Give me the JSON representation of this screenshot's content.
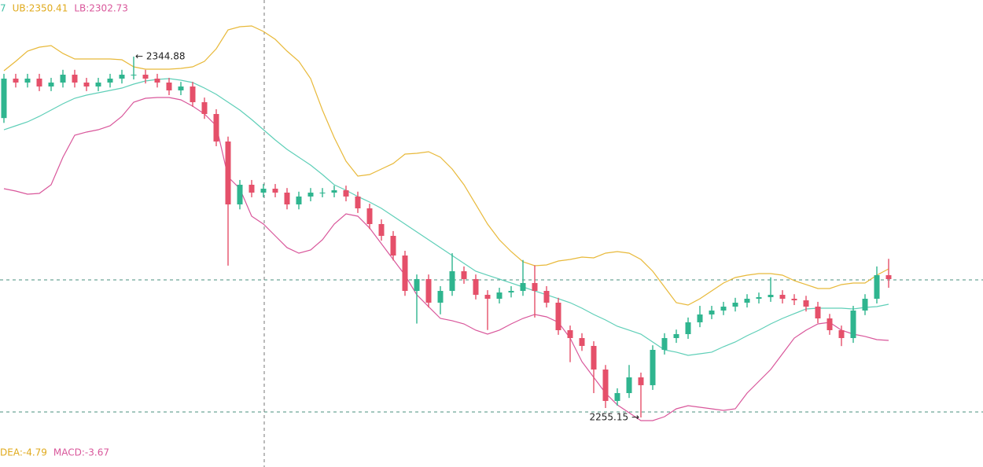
{
  "chart_data": {
    "type": "candlestick",
    "indicator_labels": [
      {
        "text": "7",
        "color": "#3fbfa5"
      },
      {
        "text": "UB:2350.41",
        "color": "#e0aa1c"
      },
      {
        "text": "LB:2302.73",
        "color": "#d9579b"
      }
    ],
    "macd_labels": [
      {
        "text": "DEA:-4.79",
        "color": "#e0aa1c"
      },
      {
        "text": "MACD:-3.67",
        "color": "#d9579b"
      }
    ],
    "ylim": [
      2242.83,
      2358.96
    ],
    "up_color": "#2fb58f",
    "down_color": "#e5506a",
    "opens": [
      2329.6,
      2339.41,
      2338.43,
      2339.41,
      2337.45,
      2338.43,
      2340.39,
      2338.43,
      2337.45,
      2338.43,
      2339.41,
      2340.39,
      2340.39,
      2339.41,
      2338.43,
      2336.48,
      2337.45,
      2333.55,
      2330.61,
      2323.77,
      2308.13,
      2313.02,
      2311.06,
      2312.04,
      2311.06,
      2308.13,
      2310.09,
      2311.06,
      2311.06,
      2311.65,
      2310.09,
      2307.15,
      2303.24,
      2300.31,
      2295.42,
      2286.62,
      2289.56,
      2283.69,
      2286.62,
      2291.51,
      2289.56,
      2285.65,
      2284.67,
      2286.23,
      2286.62,
      2288.58,
      2286.62,
      2283.69,
      2276.85,
      2274.89,
      2272.94,
      2267.07,
      2259.26,
      2261.21,
      2265.12,
      2263.17,
      2271.96,
      2274.89,
      2275.87,
      2278.81,
      2280.76,
      2281.74,
      2282.71,
      2283.69,
      2284.67,
      2285.06,
      2285.65,
      2284.67,
      2284.28,
      2282.71,
      2279.78,
      2276.85,
      2274.89,
      2281.74,
      2284.67,
      2290.53
    ],
    "highs": [
      2340.6,
      2340.6,
      2340.6,
      2340.6,
      2339.6,
      2341.6,
      2341.6,
      2339.6,
      2339.6,
      2340.6,
      2341.6,
      2344.88,
      2341.6,
      2340.6,
      2339.6,
      2338.6,
      2338.6,
      2334.7,
      2331.8,
      2325.0,
      2314.2,
      2314.2,
      2313.2,
      2313.2,
      2312.2,
      2311.3,
      2312.2,
      2312.2,
      2312.8,
      2312.8,
      2311.3,
      2308.3,
      2304.4,
      2301.5,
      2296.6,
      2290.7,
      2290.7,
      2287.8,
      2296.0,
      2292.7,
      2290.7,
      2286.8,
      2287.4,
      2287.8,
      2294.3,
      2293.0,
      2287.8,
      2284.9,
      2278.0,
      2276.1,
      2274.1,
      2268.2,
      2262.4,
      2268.2,
      2266.3,
      2273.1,
      2276.1,
      2277.0,
      2280.0,
      2282.9,
      2282.9,
      2283.9,
      2284.9,
      2285.8,
      2286.2,
      2290.0,
      2286.8,
      2285.8,
      2285.4,
      2283.9,
      2280.9,
      2278.0,
      2282.9,
      2285.8,
      2292.7,
      2294.6
    ],
    "lows": [
      2328.4,
      2337.2,
      2337.2,
      2336.3,
      2336.3,
      2337.2,
      2337.2,
      2336.3,
      2336.3,
      2337.2,
      2338.2,
      2339.2,
      2338.2,
      2337.2,
      2335.3,
      2335.3,
      2332.4,
      2329.4,
      2322.6,
      2292.9,
      2306.9,
      2309.9,
      2309.9,
      2309.9,
      2306.9,
      2306.9,
      2308.9,
      2309.9,
      2309.9,
      2308.9,
      2306.0,
      2302.0,
      2299.1,
      2294.2,
      2285.4,
      2278.5,
      2282.5,
      2280.8,
      2285.4,
      2288.4,
      2284.5,
      2276.9,
      2283.5,
      2285.0,
      2285.4,
      2280.0,
      2282.5,
      2275.7,
      2268.9,
      2271.7,
      2261.2,
      2257.5,
      2258.1,
      2260.0,
      2255.15,
      2262.0,
      2270.8,
      2273.7,
      2274.7,
      2277.6,
      2279.6,
      2280.6,
      2281.5,
      2282.5,
      2283.5,
      2283.9,
      2283.5,
      2283.1,
      2281.5,
      2278.6,
      2275.7,
      2272.9,
      2273.7,
      2280.6,
      2283.5,
      2287.4
    ],
    "closes": [
      2339.41,
      2338.43,
      2339.41,
      2337.45,
      2338.43,
      2340.39,
      2338.43,
      2337.45,
      2338.43,
      2339.41,
      2340.39,
      2340.39,
      2339.41,
      2338.43,
      2336.48,
      2337.45,
      2333.55,
      2330.61,
      2323.77,
      2308.13,
      2313.02,
      2311.06,
      2312.04,
      2311.06,
      2308.13,
      2310.09,
      2311.06,
      2311.06,
      2311.65,
      2310.09,
      2307.15,
      2303.24,
      2300.31,
      2295.42,
      2286.62,
      2289.56,
      2283.69,
      2286.62,
      2291.51,
      2289.56,
      2285.65,
      2284.67,
      2286.23,
      2286.62,
      2288.58,
      2286.62,
      2283.69,
      2276.85,
      2274.89,
      2272.94,
      2267.07,
      2259.26,
      2261.21,
      2265.12,
      2263.17,
      2271.96,
      2274.89,
      2275.87,
      2278.81,
      2280.76,
      2281.74,
      2282.71,
      2283.69,
      2284.67,
      2285.06,
      2285.65,
      2284.67,
      2284.28,
      2282.71,
      2279.78,
      2276.85,
      2274.89,
      2281.74,
      2284.67,
      2290.53,
      2289.56
    ],
    "series": [
      {
        "color": "#e8b93a",
        "values": [
          2341.36,
          2343.71,
          2346.25,
          2347.23,
          2347.62,
          2345.67,
          2344.3,
          2344.3,
          2344.3,
          2344.3,
          2344.1,
          2342.34,
          2341.76,
          2341.76,
          2341.76,
          2341.95,
          2342.34,
          2343.71,
          2346.84,
          2351.53,
          2352.31,
          2352.51,
          2351.14,
          2349.18,
          2346.25,
          2343.71,
          2339.41,
          2331.59,
          2324.75,
          2318.88,
          2315.17,
          2315.56,
          2316.93,
          2318.3,
          2320.64,
          2320.84,
          2321.23,
          2319.86,
          2316.93,
          2313.02,
          2308.13,
          2303.24,
          2299.33,
          2296.4,
          2293.86,
          2292.88,
          2293.08,
          2294.05,
          2294.44,
          2295.03,
          2294.84,
          2296.01,
          2296.4,
          2296.01,
          2294.44,
          2291.51,
          2287.6,
          2283.69,
          2283.11,
          2284.67,
          2286.62,
          2288.58,
          2289.95,
          2290.53,
          2290.93,
          2290.93,
          2290.53,
          2289.17,
          2288.19,
          2287.21,
          2287.21,
          2288.19,
          2288.58,
          2288.58,
          2290.53,
          2292.1
        ]
      },
      {
        "color": "#5fcfb8",
        "values": [
          2326.7,
          2327.68,
          2328.66,
          2330.03,
          2331.59,
          2333.15,
          2334.52,
          2335.3,
          2335.89,
          2336.48,
          2337.06,
          2338.04,
          2338.82,
          2339.21,
          2339.41,
          2339.02,
          2338.43,
          2337.06,
          2335.5,
          2333.54,
          2331.59,
          2329.24,
          2326.7,
          2324.16,
          2321.81,
          2319.86,
          2317.9,
          2315.56,
          2313.02,
          2311.65,
          2310.09,
          2308.72,
          2307.15,
          2305.2,
          2303.24,
          2301.29,
          2299.33,
          2297.38,
          2295.42,
          2293.47,
          2291.51,
          2290.53,
          2289.56,
          2288.58,
          2287.6,
          2286.62,
          2285.65,
          2284.67,
          2283.69,
          2282.32,
          2280.76,
          2279.39,
          2277.83,
          2276.85,
          2275.87,
          2273.92,
          2271.96,
          2271.38,
          2270.59,
          2270.98,
          2271.38,
          2272.74,
          2273.92,
          2275.48,
          2276.85,
          2278.41,
          2279.78,
          2280.96,
          2282.13,
          2282.32,
          2282.32,
          2282.32,
          2282.13,
          2282.52,
          2282.71,
          2283.3
        ]
      },
      {
        "color": "#d9579b",
        "values": [
          2312.04,
          2311.45,
          2310.67,
          2310.87,
          2313.02,
          2319.86,
          2325.33,
          2326.12,
          2326.7,
          2327.68,
          2330.03,
          2333.54,
          2334.52,
          2334.72,
          2334.72,
          2334.13,
          2332.57,
          2330.61,
          2327.68,
          2314.97,
          2312.04,
          2305.2,
          2303.24,
          2300.31,
          2297.38,
          2296.01,
          2296.79,
          2299.33,
          2303.24,
          2305.78,
          2305.2,
          2302.26,
          2298.35,
          2294.44,
          2290.53,
          2285.65,
          2282.71,
          2279.78,
          2279.2,
          2278.41,
          2276.85,
          2275.87,
          2276.85,
          2278.41,
          2279.78,
          2280.76,
          2280.17,
          2278.8,
          2274.89,
          2269.03,
          2265.12,
          2261.21,
          2258.28,
          2256.32,
          2254.37,
          2254.37,
          2255.34,
          2257.3,
          2258.08,
          2257.69,
          2257.3,
          2256.91,
          2257.3,
          2261.21,
          2264.14,
          2267.07,
          2270.98,
          2274.89,
          2276.85,
          2278.41,
          2278.8,
          2276.85,
          2275.87,
          2275.29,
          2274.5,
          2274.31
        ]
      }
    ],
    "price_lines": [
      2289.36,
      2256.52
    ],
    "max_label": {
      "value": 2344.88,
      "label": "← 2344.88"
    },
    "min_label": {
      "value": 2255.15,
      "label": "2255.15 →"
    }
  }
}
